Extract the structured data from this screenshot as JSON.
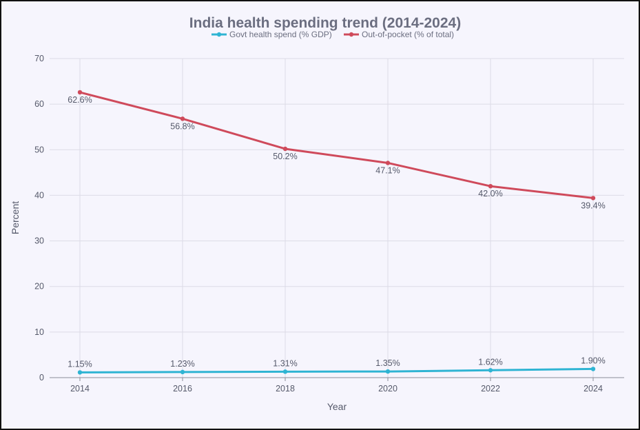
{
  "chart_data": {
    "type": "line",
    "title": "India health spending trend (2014-2024)",
    "xlabel": "Year",
    "ylabel": "Percent",
    "x": [
      2014,
      2016,
      2018,
      2020,
      2022,
      2024
    ],
    "x_tick_labels": [
      "2014",
      "2016",
      "2018",
      "2020",
      "2022",
      "2024"
    ],
    "ylim": [
      0,
      70
    ],
    "y_ticks": [
      0,
      10,
      20,
      30,
      40,
      50,
      60,
      70
    ],
    "y_tick_labels": [
      "0",
      "10",
      "20",
      "30",
      "40",
      "50",
      "60",
      "70"
    ],
    "grid": true,
    "legend_position": "top-center",
    "series": [
      {
        "name": "Govt health spend (% GDP)",
        "color": "#2fb4d3",
        "values": [
          1.15,
          1.23,
          1.31,
          1.35,
          1.62,
          1.9
        ],
        "labels": [
          "1.15%",
          "1.23%",
          "1.31%",
          "1.35%",
          "1.62%",
          "1.90%"
        ]
      },
      {
        "name": "Out-of-pocket (% of total)",
        "color": "#cf4a5b",
        "values": [
          62.6,
          56.8,
          50.2,
          47.1,
          42.0,
          39.4
        ],
        "labels": [
          "62.6%",
          "56.8%",
          "50.2%",
          "47.1%",
          "42.0%",
          "39.4%"
        ]
      }
    ]
  }
}
